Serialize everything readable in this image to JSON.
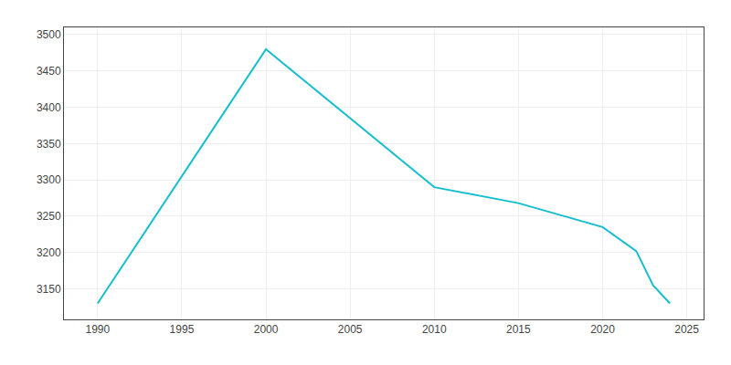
{
  "chart_data": {
    "type": "line",
    "x": [
      1990,
      2000,
      2010,
      2015,
      2020,
      2022,
      2023,
      2024
    ],
    "values": [
      3130,
      3480,
      3290,
      3268,
      3235,
      3202,
      3155,
      3130
    ],
    "color": "#17becf",
    "xlim": [
      1988,
      2026
    ],
    "ylim": [
      3108,
      3510
    ],
    "xticks": [
      1990,
      1995,
      2000,
      2005,
      2010,
      2015,
      2020,
      2025
    ],
    "yticks": [
      3150,
      3200,
      3250,
      3300,
      3350,
      3400,
      3450,
      3500
    ],
    "grid": true
  }
}
